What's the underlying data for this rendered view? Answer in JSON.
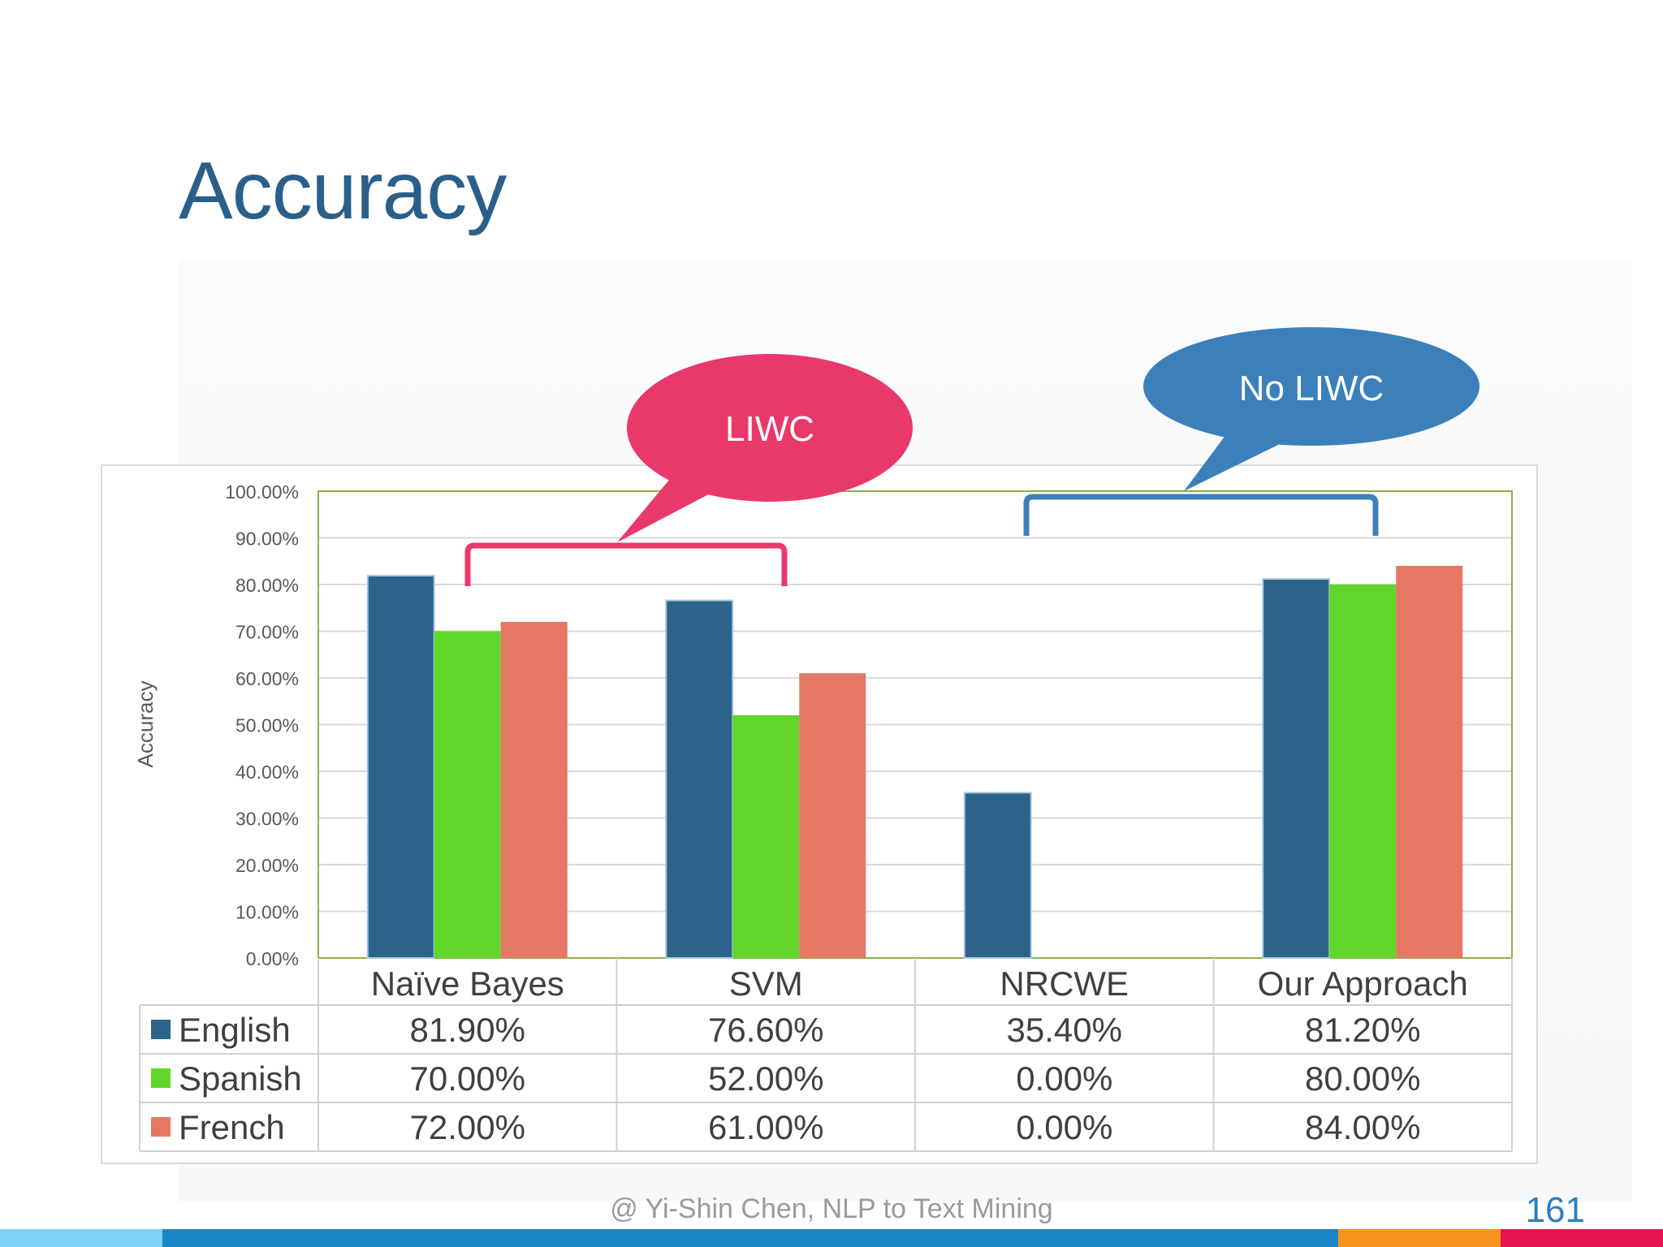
{
  "slide": {
    "title": "Accuracy",
    "footer": "@ Yi-Shin Chen, NLP to Text Mining",
    "page_number": "161",
    "bottom_bar_colors": [
      "#7fd0f7",
      "#1b86c6",
      "#f7941d",
      "#e5134f"
    ]
  },
  "callouts": {
    "liwc": {
      "label": "LIWC",
      "color": "#e8396a"
    },
    "no_liwc": {
      "label": "No LIWC",
      "color": "#3b80ba"
    }
  },
  "chart_data": {
    "type": "bar",
    "ylabel": "Accuracy",
    "ylim": [
      0,
      1
    ],
    "y_ticks": [
      "0.00%",
      "10.00%",
      "20.00%",
      "30.00%",
      "40.00%",
      "50.00%",
      "60.00%",
      "70.00%",
      "80.00%",
      "90.00%",
      "100.00%"
    ],
    "categories": [
      "Naïve Bayes",
      "SVM",
      "NRCWE",
      "Our Approach"
    ],
    "series": [
      {
        "name": "English",
        "color": "#2c638b",
        "values": [
          0.819,
          0.766,
          0.354,
          0.812
        ],
        "labels": [
          "81.90%",
          "76.60%",
          "35.40%",
          "81.20%"
        ]
      },
      {
        "name": "Spanish",
        "color": "#61d52a",
        "values": [
          0.7,
          0.52,
          0.0,
          0.8
        ],
        "labels": [
          "70.00%",
          "52.00%",
          "0.00%",
          "80.00%"
        ]
      },
      {
        "name": "French",
        "color": "#e47865",
        "values": [
          0.72,
          0.61,
          0.0,
          0.84
        ],
        "labels": [
          "72.00%",
          "61.00%",
          "0.00%",
          "84.00%"
        ]
      }
    ],
    "grid": true,
    "legend": "data table below chart"
  }
}
